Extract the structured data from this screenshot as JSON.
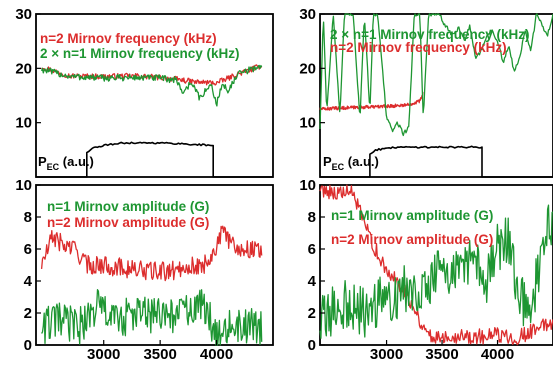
{
  "colors": {
    "red": "#dc2d2d",
    "green": "#1e9632",
    "black": "#000000"
  },
  "chart_data": [
    {
      "id": "top-left",
      "type": "line",
      "xlim": [
        2400,
        4500
      ],
      "ylim": [
        0,
        30
      ],
      "yticks": [
        10,
        20,
        30
      ],
      "xticks": [],
      "grid": false,
      "legend_position": "top-left",
      "legend": [
        "n=2 Mirnov frequency (kHz)",
        "2 × n=1 Mirnov frequency (kHz)"
      ],
      "pec_label": "P",
      "pec_sub": "EC",
      "pec_unit": " (a.u.)",
      "series": [
        {
          "name": "n=2 Mirnov frequency (kHz)",
          "color": "red",
          "x": [
            2450,
            2700,
            3000,
            3300,
            3500,
            3650,
            3800,
            4000,
            4200,
            4400
          ],
          "y": [
            20.3,
            18.6,
            18.5,
            18.6,
            18.3,
            18.0,
            17.5,
            17.3,
            19.0,
            20.5
          ],
          "noise": 0.5
        },
        {
          "name": "2 × n=1 Mirnov frequency (kHz)",
          "color": "green",
          "x": [
            2450,
            2700,
            3000,
            3300,
            3500,
            3650,
            3700,
            3780,
            3850,
            3950,
            4000,
            4050,
            4100,
            4200,
            4400
          ],
          "y": [
            19.8,
            18.5,
            18.2,
            18.3,
            18.2,
            17.8,
            15.5,
            17.5,
            14.5,
            17.0,
            13.5,
            17.0,
            16.0,
            19.0,
            20.5
          ],
          "noise": 0.6
        },
        {
          "name": "P_EC",
          "color": "black",
          "x": [
            2400,
            2850,
            2850,
            2900,
            3050,
            3200,
            3400,
            3600,
            3800,
            3970,
            3970,
            4500
          ],
          "y": [
            0,
            0,
            4.5,
            5.3,
            6.0,
            6.3,
            6.3,
            6.2,
            6.0,
            5.8,
            0,
            0
          ],
          "noise": 0.15
        }
      ]
    },
    {
      "id": "top-right",
      "type": "line",
      "xlim": [
        2400,
        4500
      ],
      "ylim": [
        0,
        30
      ],
      "yticks": [
        10,
        20,
        30
      ],
      "xticks": [],
      "grid": false,
      "legend_position": "top-left",
      "legend": [
        "2 × n=1 Mirnov frequency (kHz)",
        "n=2 Mirnov frequency (kHz)"
      ],
      "pec_label": "P",
      "pec_sub": "EC",
      "pec_unit": " (a.u.)",
      "series": [
        {
          "name": "n=2 Mirnov frequency (kHz)",
          "color": "red",
          "x": [
            2400,
            2700,
            3000,
            3200,
            3300,
            3330
          ],
          "y": [
            12.5,
            12.8,
            13.0,
            13.3,
            14.0,
            15.5
          ],
          "noise": 0.3
        },
        {
          "name": "2 × n=1 Mirnov frequency (kHz)",
          "color": "green",
          "x": [
            2400,
            2430,
            2460,
            2520,
            2580,
            2620,
            2660,
            2700,
            2760,
            2800,
            2850,
            2880,
            2920,
            3000,
            3050,
            3100,
            3150,
            3200,
            3250,
            3300,
            3330,
            3380,
            3420,
            3480,
            3520,
            3600,
            3650,
            3700,
            3750,
            3800,
            3850,
            3900,
            3950,
            4000,
            4050,
            4100,
            4150,
            4200,
            4250,
            4300,
            4350,
            4400,
            4450,
            4500
          ],
          "y": [
            9.0,
            30.0,
            12.0,
            30.0,
            11.0,
            30.0,
            30.0,
            30.0,
            10.5,
            30.0,
            12.0,
            30.0,
            30.0,
            11.0,
            8.5,
            10.0,
            8.0,
            9.0,
            30.0,
            30.0,
            11.0,
            30.0,
            30.0,
            30.0,
            28.0,
            26.0,
            27.5,
            25.0,
            28.0,
            22.0,
            23.0,
            26.0,
            27.0,
            25.0,
            21.0,
            24.0,
            19.5,
            22.0,
            27.0,
            23.0,
            30.0,
            28.0,
            26.0,
            30.0
          ],
          "noise": 0.4
        },
        {
          "name": "P_EC",
          "color": "black",
          "x": [
            2400,
            2850,
            2850,
            2900,
            3100,
            3400,
            3600,
            3860,
            3860,
            4500
          ],
          "y": [
            0,
            0,
            4.2,
            5.0,
            5.5,
            5.5,
            5.5,
            5.5,
            0,
            0
          ],
          "noise": 0.15
        }
      ]
    },
    {
      "id": "bottom-left",
      "type": "line",
      "xlim": [
        2400,
        4500
      ],
      "ylim": [
        0,
        10
      ],
      "yticks": [
        0,
        2,
        4,
        6,
        8,
        10
      ],
      "xticks": [
        3000,
        3500,
        4000
      ],
      "grid": false,
      "legend_position": "top-left",
      "legend": [
        "n=1 Mirnov amplitude (G)",
        "n=2 Mirnov amplitude (G)"
      ],
      "series": [
        {
          "name": "n=2 Mirnov amplitude (G)",
          "color": "red",
          "x": [
            2450,
            2550,
            2650,
            2750,
            2850,
            3000,
            3200,
            3400,
            3600,
            3750,
            3850,
            3950,
            4050,
            4200,
            4400
          ],
          "y": [
            5.0,
            6.8,
            6.2,
            6.0,
            5.0,
            5.0,
            4.8,
            4.6,
            4.6,
            5.0,
            4.8,
            5.5,
            7.0,
            6.0,
            6.0
          ],
          "noise": 0.6
        },
        {
          "name": "n=1 Mirnov amplitude (G)",
          "color": "green",
          "x": [
            2450,
            2600,
            2800,
            2950,
            3100,
            3300,
            3500,
            3700,
            3850,
            4000,
            4200,
            4400
          ],
          "y": [
            1.2,
            1.5,
            1.2,
            2.5,
            1.5,
            2.0,
            1.8,
            2.0,
            2.5,
            1.0,
            1.2,
            1.0
          ],
          "noise": 1.2
        }
      ]
    },
    {
      "id": "bottom-right",
      "type": "line",
      "xlim": [
        2400,
        4500
      ],
      "ylim": [
        0,
        10
      ],
      "yticks": [
        0,
        2,
        4,
        6,
        8,
        10
      ],
      "xticks": [
        3000,
        3500,
        4000
      ],
      "grid": false,
      "legend_position": "top-left",
      "legend": [
        "n=1 Mirnov amplitude (G)",
        "n=2 Mirnov amplitude (G)"
      ],
      "series": [
        {
          "name": "n=2 Mirnov amplitude (G)",
          "color": "red",
          "x": [
            2400,
            2550,
            2700,
            2800,
            2900,
            3000,
            3100,
            3200,
            3300,
            3400,
            3600,
            3800,
            4000,
            4200,
            4500
          ],
          "y": [
            9.8,
            9.5,
            9.5,
            7.5,
            6.0,
            4.5,
            4.0,
            3.0,
            1.5,
            0.5,
            0.6,
            0.5,
            0.6,
            0.5,
            1.5
          ],
          "noise": 0.5
        },
        {
          "name": "n=1 Mirnov amplitude (G)",
          "color": "green",
          "x": [
            2400,
            2600,
            2800,
            3000,
            3200,
            3400,
            3500,
            3600,
            3700,
            3800,
            3900,
            4000,
            4100,
            4200,
            4300,
            4400,
            4500
          ],
          "y": [
            1.5,
            2.5,
            2.0,
            3.0,
            3.5,
            4.0,
            5.0,
            4.0,
            5.5,
            5.0,
            4.0,
            6.0,
            6.5,
            3.0,
            2.0,
            6.0,
            8.0
          ],
          "noise": 1.6
        }
      ]
    }
  ]
}
